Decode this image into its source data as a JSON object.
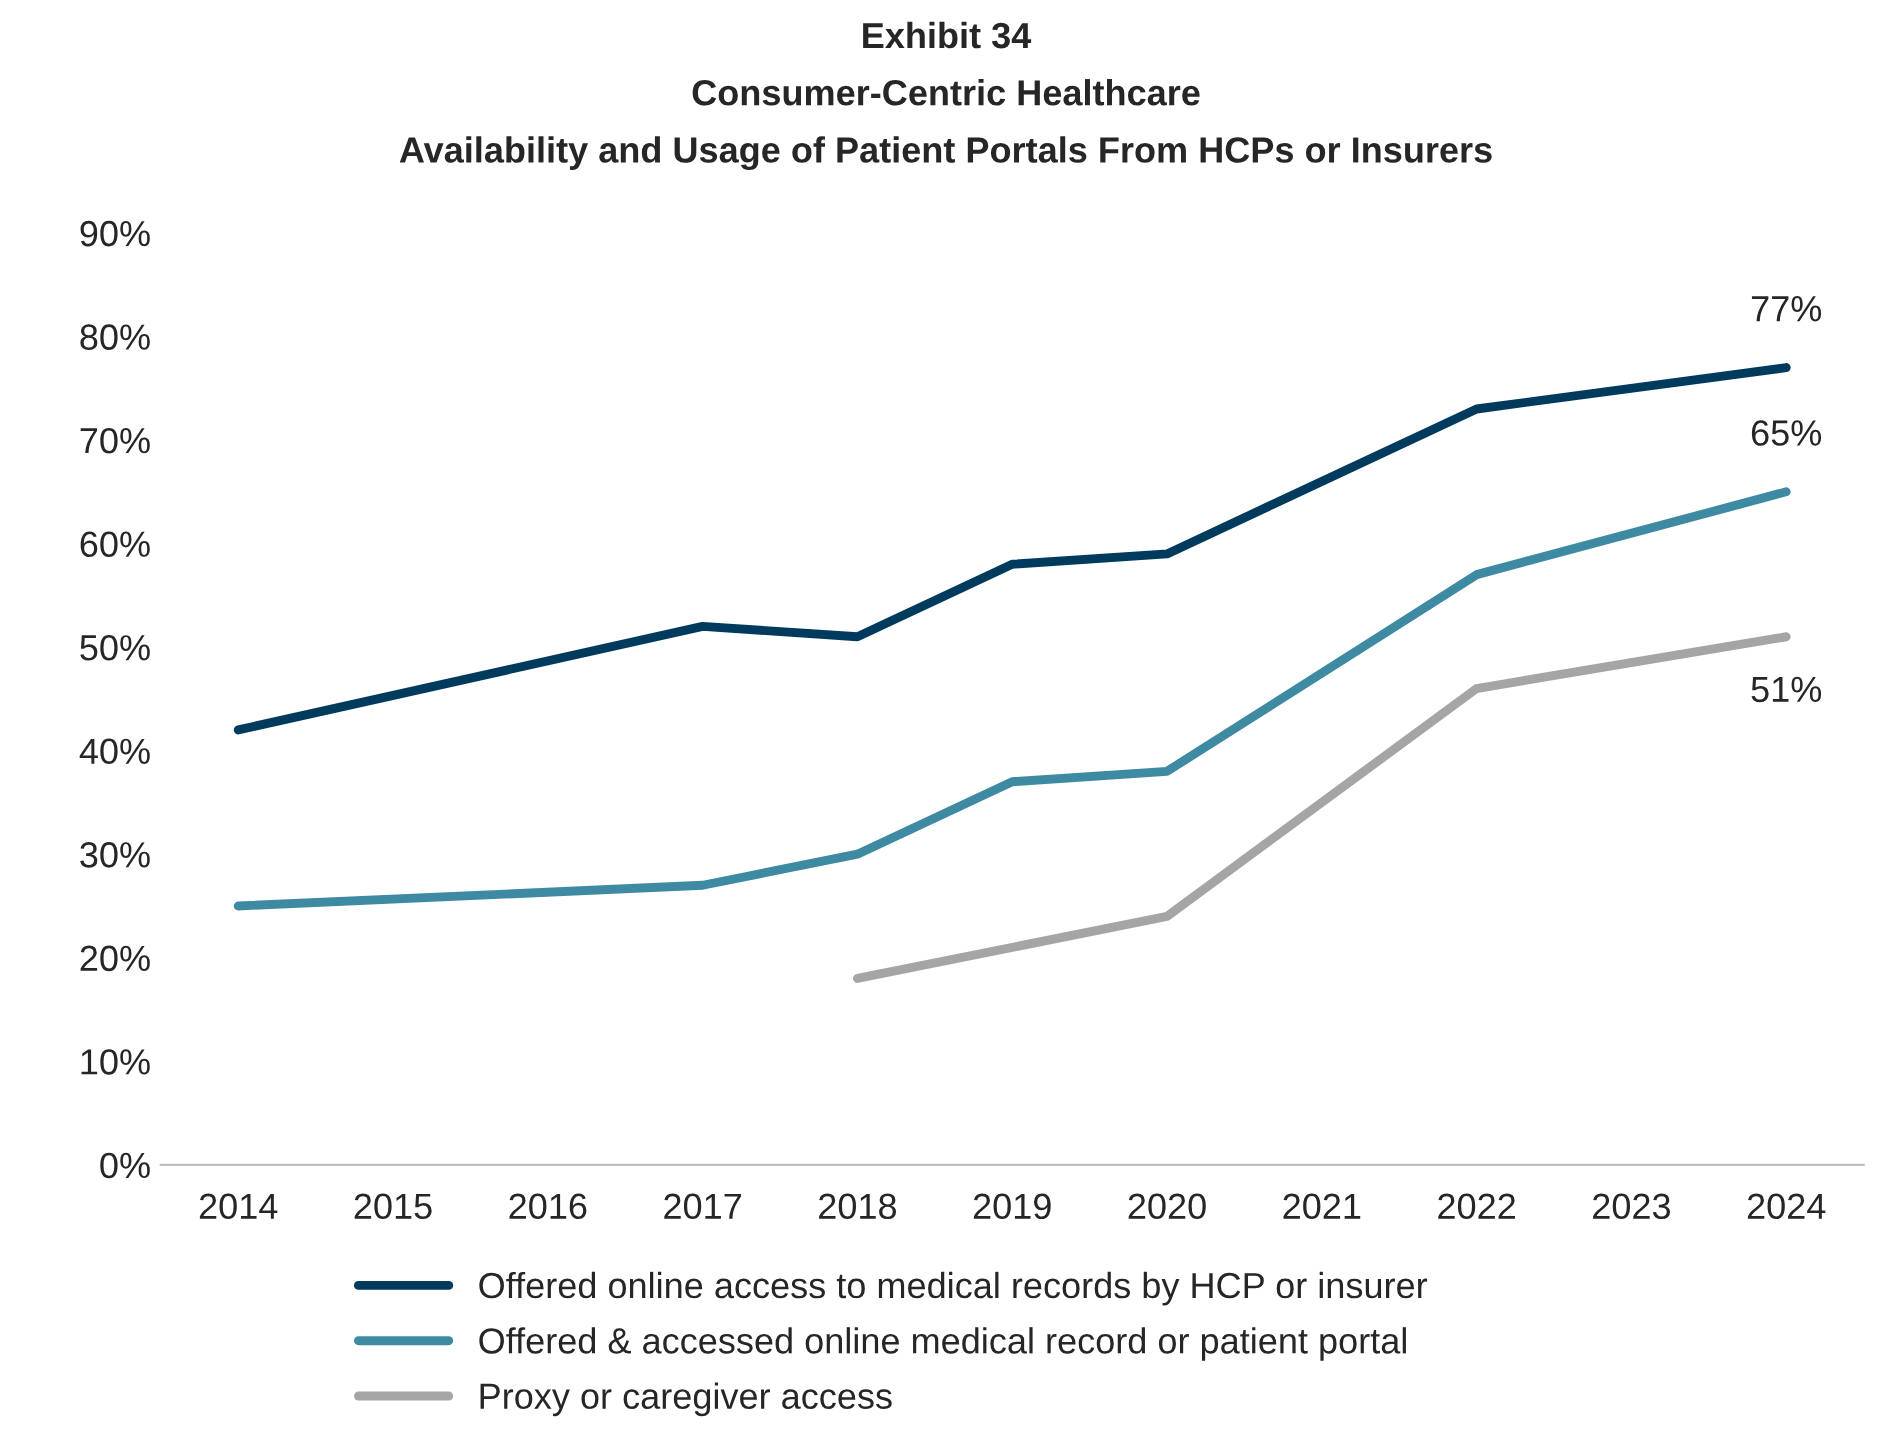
{
  "chart_data": {
    "type": "line",
    "title": "Exhibit 34\nConsumer-Centric Healthcare\nAvailability and Usage of Patient Portals From HCPs or Insurers",
    "xlim": [
      2013.5,
      2024.5
    ],
    "xticks": [
      2014,
      2015,
      2016,
      2017,
      2018,
      2019,
      2020,
      2021,
      2022,
      2023,
      2024
    ],
    "ylim": [
      0,
      90
    ],
    "yticks": [
      {
        "value": 0,
        "label": "0%"
      },
      {
        "value": 10,
        "label": "10%"
      },
      {
        "value": 20,
        "label": "20%"
      },
      {
        "value": 30,
        "label": "30%"
      },
      {
        "value": 40,
        "label": "40%"
      },
      {
        "value": 50,
        "label": "50%"
      },
      {
        "value": 60,
        "label": "60%"
      },
      {
        "value": 70,
        "label": "70%"
      },
      {
        "value": 80,
        "label": "80%"
      },
      {
        "value": 90,
        "label": "90%"
      }
    ],
    "grid": false,
    "legend": "bottom",
    "marker": "none",
    "line_style": "solid",
    "series": [
      {
        "name": "Offered online access to medical records by HCP or insurer",
        "color": "#003a5d",
        "x": [
          2014,
          2017,
          2018,
          2019,
          2020,
          2022,
          2024
        ],
        "values": [
          42,
          52,
          51,
          58,
          59,
          73,
          77
        ],
        "value_labels": [
          null,
          null,
          null,
          null,
          null,
          null,
          "77%"
        ]
      },
      {
        "name": "Offered & accessed online medical record or patient portal",
        "color": "#3f8aa3",
        "x": [
          2014,
          2017,
          2018,
          2019,
          2020,
          2022,
          2024
        ],
        "values": [
          25,
          27,
          30,
          37,
          38,
          57,
          65
        ],
        "value_labels": [
          null,
          null,
          null,
          null,
          null,
          null,
          "65%"
        ]
      },
      {
        "name": "Proxy or caregiver access",
        "color": "#a5a5a5",
        "x": [
          2018,
          2020,
          2022,
          2024
        ],
        "values": [
          18,
          24,
          46,
          51
        ],
        "value_labels": [
          null,
          null,
          null,
          "51%"
        ]
      }
    ]
  }
}
